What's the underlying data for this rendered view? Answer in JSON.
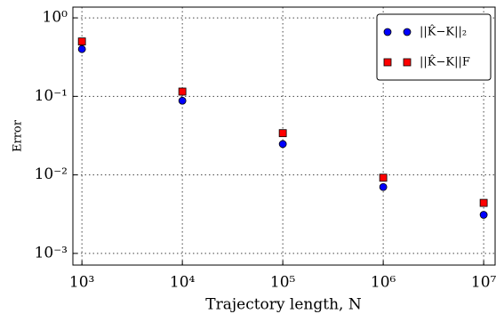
{
  "chart_data": {
    "type": "scatter",
    "xlabel": "Trajectory length, N",
    "ylabel": "Error",
    "log_x": true,
    "log_y": true,
    "grid": true,
    "legend": "upper right",
    "x": [
      1000,
      10000,
      100000,
      1000000,
      10000000
    ],
    "series": [
      {
        "name": "||K̂−K||₂",
        "color": "#0000ff",
        "marker": "circle",
        "values": [
          0.4,
          0.088,
          0.0247,
          0.007,
          0.0031
        ]
      },
      {
        "name": "||K̂−K||F",
        "color": "#ff0000",
        "marker": "square",
        "values": [
          0.5,
          0.115,
          0.034,
          0.0092,
          0.0044
        ]
      }
    ],
    "xlim": [
      813,
      13000000
    ],
    "ylim": [
      0.00071,
      1.37
    ],
    "xticks": [
      {
        "value": 1000,
        "label": "10³"
      },
      {
        "value": 10000,
        "label": "10⁴"
      },
      {
        "value": 100000,
        "label": "10⁵"
      },
      {
        "value": 1000000,
        "label": "10⁶"
      },
      {
        "value": 10000000,
        "label": "10⁷"
      }
    ],
    "yticks": [
      {
        "value": 1,
        "label": "10⁰"
      },
      {
        "value": 0.1,
        "label": "10⁻¹"
      },
      {
        "value": 0.01,
        "label": "10⁻²"
      },
      {
        "value": 0.001,
        "label": "10⁻³"
      }
    ]
  }
}
